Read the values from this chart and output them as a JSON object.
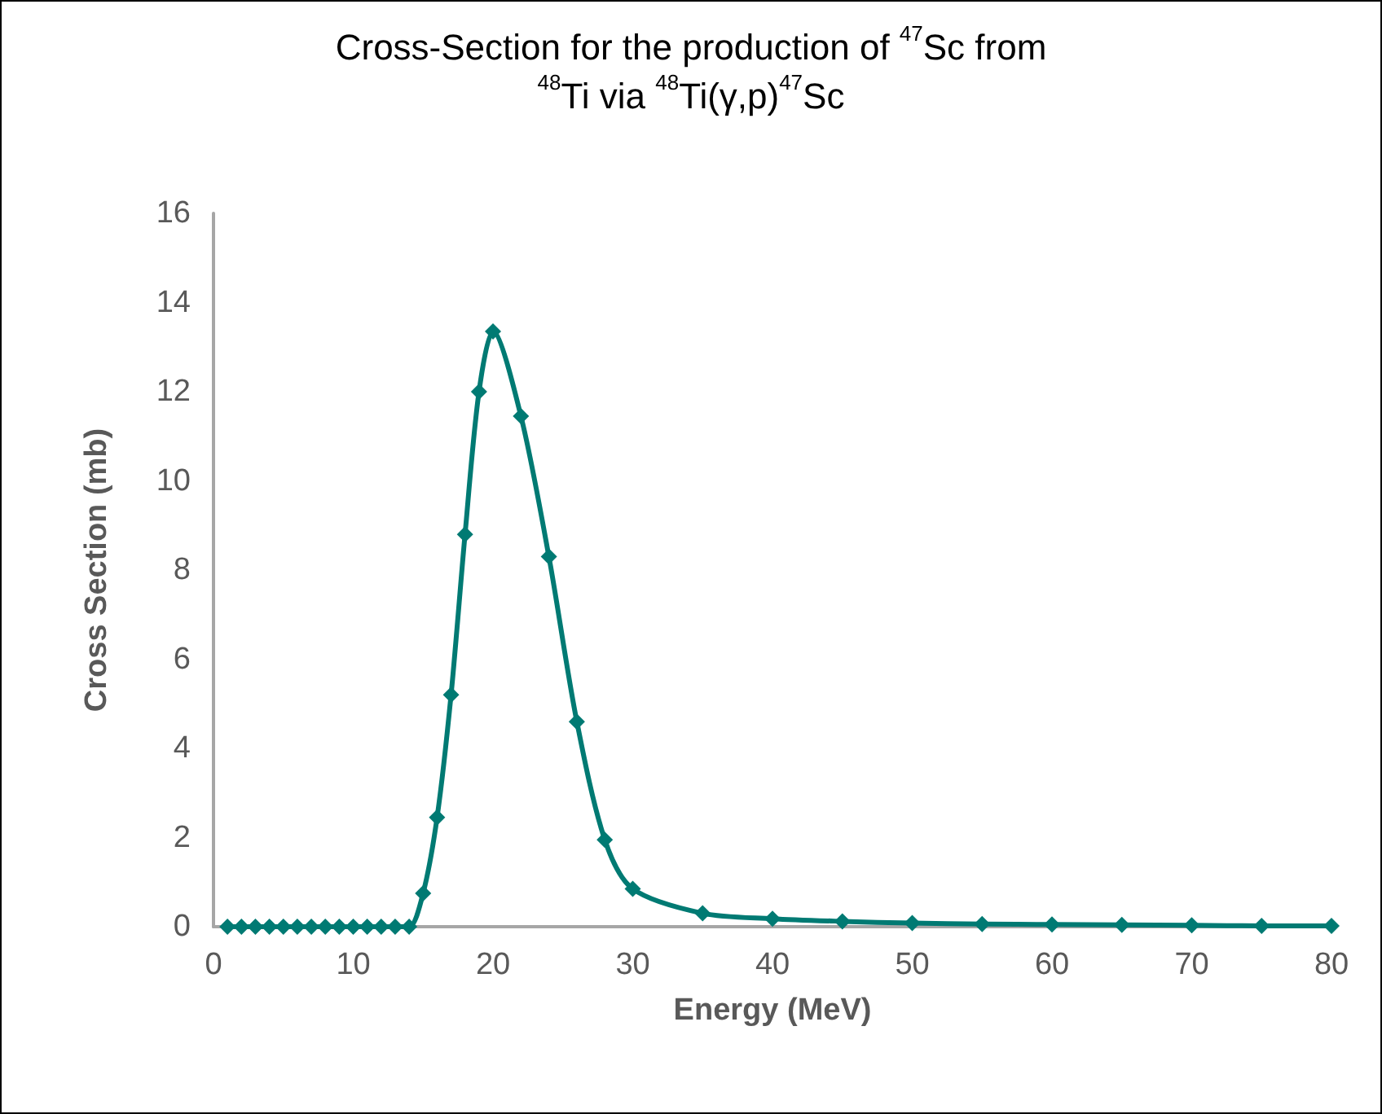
{
  "chart_data": {
    "type": "line",
    "title": "Cross-Section for the production of $^{47}$Sc from $^{48}$Ti via $^{48}$Ti(γ,p)$^{47}$Sc",
    "xlabel": "Energy (MeV)",
    "ylabel": "Cross Section (mb)",
    "x": [
      1,
      2,
      3,
      4,
      5,
      6,
      7,
      8,
      9,
      10,
      11,
      12,
      13,
      14,
      15,
      16,
      17,
      18,
      19,
      20,
      22,
      24,
      26,
      28,
      30,
      35,
      40,
      45,
      50,
      55,
      60,
      65,
      70,
      75,
      80
    ],
    "series": [
      {
        "color": "#007a73",
        "values": [
          0,
          0,
          0,
          0,
          0,
          0,
          0,
          0,
          0,
          0,
          0,
          0,
          0,
          0,
          0.75,
          2.45,
          5.2,
          8.8,
          12.0,
          13.35,
          11.45,
          8.3,
          4.6,
          1.95,
          0.85,
          0.3,
          0.18,
          0.12,
          0.08,
          0.06,
          0.05,
          0.04,
          0.03,
          0.02,
          0.02
        ]
      }
    ],
    "xlim": [
      0,
      80
    ],
    "xticks": [
      0,
      10,
      20,
      30,
      40,
      50,
      60,
      70,
      80
    ],
    "ylim": [
      0,
      16
    ],
    "yticks": [
      0,
      2,
      4,
      6,
      8,
      10,
      12,
      14,
      16
    ],
    "grid": false,
    "marker": "diamond",
    "line_style": "solid"
  }
}
